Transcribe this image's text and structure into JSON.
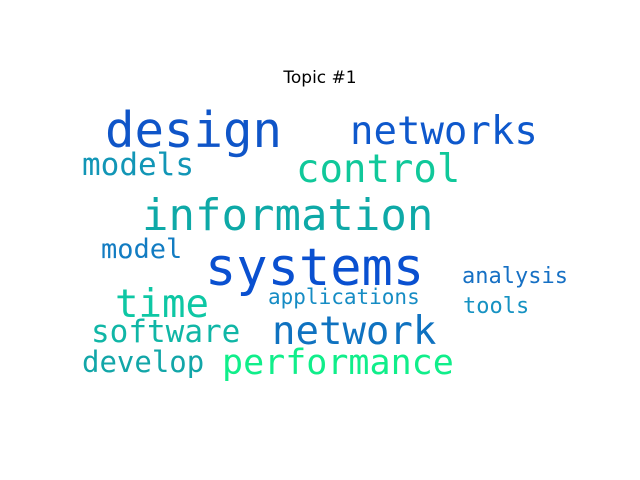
{
  "title": "Topic #1",
  "words": {
    "design": {
      "text": "design",
      "color": "#0f55c8"
    },
    "networks": {
      "text": "networks",
      "color": "#0e58cc"
    },
    "models": {
      "text": "models",
      "color": "#1296b6"
    },
    "control": {
      "text": "control",
      "color": "#10c89a"
    },
    "information": {
      "text": "information",
      "color": "#0ea9a7"
    },
    "model": {
      "text": "model",
      "color": "#127cc2"
    },
    "systems": {
      "text": "systems",
      "color": "#0a50d0"
    },
    "analysis": {
      "text": "analysis",
      "color": "#1670c4"
    },
    "time": {
      "text": "time",
      "color": "#0ec7a4"
    },
    "applications": {
      "text": "applications",
      "color": "#168cc4"
    },
    "tools": {
      "text": "tools",
      "color": "#1692c2"
    },
    "software": {
      "text": "software",
      "color": "#10b6a6"
    },
    "network": {
      "text": "network",
      "color": "#0f72c0"
    },
    "develop": {
      "text": "develop",
      "color": "#12a6a8"
    },
    "performance": {
      "text": "performance",
      "color": "#10ee8a"
    }
  }
}
